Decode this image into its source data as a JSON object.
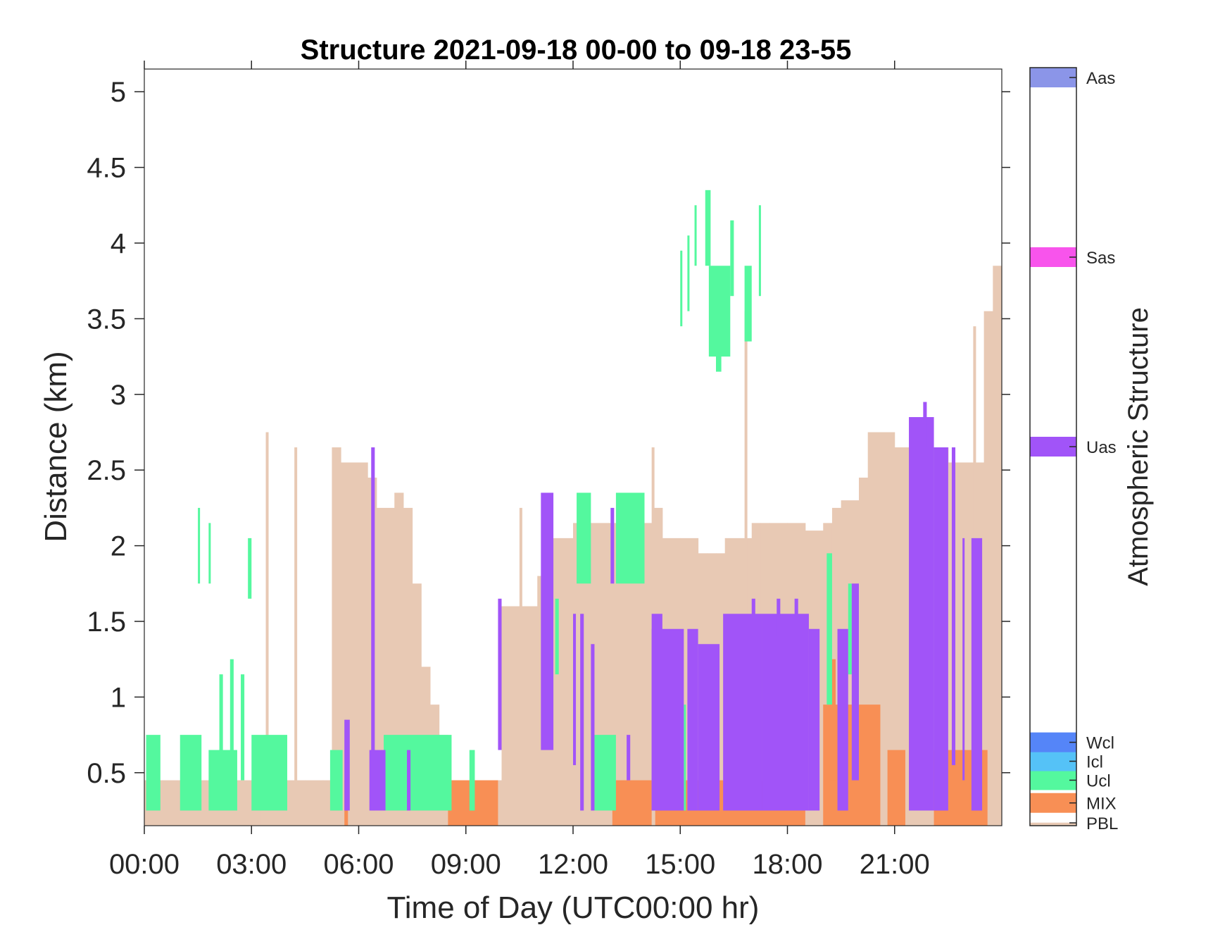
{
  "chart_data": {
    "type": "heatmap",
    "title": "Structure 2021-09-18 00-00 to 09-18 23-55",
    "xlabel": "Time of Day (UTC00:00 hr)",
    "ylabel": "Distance (km)",
    "xlim_hours": [
      0,
      24
    ],
    "ylim_km": [
      0.15,
      5.15
    ],
    "x_ticks": [
      {
        "hour": 0,
        "label": "00:00"
      },
      {
        "hour": 3,
        "label": "03:00"
      },
      {
        "hour": 6,
        "label": "06:00"
      },
      {
        "hour": 9,
        "label": "09:00"
      },
      {
        "hour": 12,
        "label": "12:00"
      },
      {
        "hour": 15,
        "label": "15:00"
      },
      {
        "hour": 18,
        "label": "18:00"
      },
      {
        "hour": 21,
        "label": "21:00"
      }
    ],
    "y_ticks": [
      {
        "km": 0.5,
        "label": "0.5"
      },
      {
        "km": 1,
        "label": "1"
      },
      {
        "km": 1.5,
        "label": "1.5"
      },
      {
        "km": 2,
        "label": "2"
      },
      {
        "km": 2.5,
        "label": "2.5"
      },
      {
        "km": 3,
        "label": "3"
      },
      {
        "km": 3.5,
        "label": "3.5"
      },
      {
        "km": 4,
        "label": "4"
      },
      {
        "km": 4.5,
        "label": "4.5"
      },
      {
        "km": 5,
        "label": "5"
      }
    ],
    "grid": false,
    "colorbar": {
      "label": "Atmospheric Structure",
      "categories": [
        {
          "name": "PBL",
          "color": "#e8c9b4",
          "level": 0.0
        },
        {
          "name": "MIX",
          "color": "#f88f55",
          "level": 0.03
        },
        {
          "name": "Ucl",
          "color": "#54f89e",
          "level": 0.06
        },
        {
          "name": "Icl",
          "color": "#55c2f7",
          "level": 0.085
        },
        {
          "name": "Wcl",
          "color": "#5585f8",
          "level": 0.11
        },
        {
          "name": "Uas",
          "color": "#a154f8",
          "level": 0.5
        },
        {
          "name": "Sas",
          "color": "#f854ec",
          "level": 0.75
        },
        {
          "name": "Aas",
          "color": "#8b95e8",
          "level": 1.0
        }
      ]
    },
    "pbl_profile": {
      "hours": [
        0,
        0.5,
        1,
        1.5,
        2,
        2.5,
        3,
        3.25,
        3.5,
        4,
        4.25,
        4.5,
        5,
        5.25,
        5.5,
        6,
        6.25,
        6.5,
        7,
        7.25,
        7.5,
        7.75,
        8,
        8.25,
        8.5,
        9,
        9.5,
        9.75,
        10,
        10.5,
        11,
        11.25,
        11.5,
        12,
        12.5,
        13,
        13.5,
        14,
        14.25,
        14.5,
        15,
        15.5,
        15.75,
        16,
        16.25,
        16.5,
        16.75,
        17,
        17.25,
        17.5,
        18,
        18.5,
        19,
        19.25,
        19.5,
        20,
        20.25,
        20.5,
        21,
        21.5,
        22,
        22.5,
        23,
        23.5,
        23.75
      ],
      "top_km": [
        0.45,
        0.45,
        0.45,
        0.45,
        0.45,
        0.45,
        0.45,
        0.45,
        0.45,
        0.45,
        0.45,
        0.45,
        0.45,
        2.65,
        2.55,
        2.55,
        2.45,
        2.25,
        2.35,
        2.25,
        1.75,
        1.2,
        0.95,
        0.75,
        0.45,
        0.45,
        0.45,
        0.45,
        1.6,
        1.6,
        1.8,
        2.05,
        2.05,
        2.15,
        2.15,
        2.15,
        2.1,
        2.15,
        2.25,
        2.05,
        2.05,
        1.95,
        1.95,
        1.95,
        2.05,
        2.05,
        2.05,
        2.15,
        2.15,
        2.15,
        2.15,
        2.1,
        2.15,
        2.25,
        2.3,
        2.45,
        2.75,
        2.75,
        2.65,
        2.65,
        2.65,
        2.55,
        2.55,
        3.55,
        3.85
      ],
      "spikes": [
        {
          "hour": 3.4,
          "top_km": 2.75
        },
        {
          "hour": 4.2,
          "top_km": 2.65
        },
        {
          "hour": 10.5,
          "top_km": 2.25
        },
        {
          "hour": 14.2,
          "top_km": 2.65
        },
        {
          "hour": 16.8,
          "top_km": 3.55
        },
        {
          "hour": 23.2,
          "top_km": 3.45
        }
      ]
    },
    "segments": [
      {
        "class": "MIX",
        "h0": 5.25,
        "h1": 5.45,
        "y0": 0.25,
        "y1": 0.45
      },
      {
        "class": "MIX",
        "h0": 5.6,
        "h1": 5.7,
        "y0": 0.15,
        "y1": 0.45
      },
      {
        "class": "MIX",
        "h0": 8.5,
        "h1": 9.9,
        "y0": 0.15,
        "y1": 0.45
      },
      {
        "class": "MIX",
        "h0": 13.1,
        "h1": 14.2,
        "y0": 0.15,
        "y1": 0.45
      },
      {
        "class": "MIX",
        "h0": 14.3,
        "h1": 18.5,
        "y0": 0.15,
        "y1": 0.45
      },
      {
        "class": "MIX",
        "h0": 15.9,
        "h1": 16.0,
        "y0": 0.25,
        "y1": 0.85
      },
      {
        "class": "MIX",
        "h0": 19.0,
        "h1": 20.6,
        "y0": 0.15,
        "y1": 0.95
      },
      {
        "class": "MIX",
        "h0": 19.2,
        "h1": 19.35,
        "y0": 0.45,
        "y1": 1.25
      },
      {
        "class": "MIX",
        "h0": 20.8,
        "h1": 21.3,
        "y0": 0.15,
        "y1": 0.65
      },
      {
        "class": "MIX",
        "h0": 22.1,
        "h1": 23.6,
        "y0": 0.15,
        "y1": 0.65
      },
      {
        "class": "Ucl",
        "h0": 0.05,
        "h1": 0.45,
        "y0": 0.25,
        "y1": 0.75
      },
      {
        "class": "Ucl",
        "h0": 1.0,
        "h1": 1.6,
        "y0": 0.25,
        "y1": 0.75
      },
      {
        "class": "Ucl",
        "h0": 1.5,
        "h1": 1.55,
        "y0": 1.75,
        "y1": 2.25
      },
      {
        "class": "Ucl",
        "h0": 1.8,
        "h1": 1.85,
        "y0": 1.75,
        "y1": 2.15
      },
      {
        "class": "Ucl",
        "h0": 1.8,
        "h1": 2.6,
        "y0": 0.25,
        "y1": 0.65
      },
      {
        "class": "Ucl",
        "h0": 2.1,
        "h1": 2.2,
        "y0": 0.45,
        "y1": 1.15
      },
      {
        "class": "Ucl",
        "h0": 2.4,
        "h1": 2.5,
        "y0": 0.35,
        "y1": 1.25
      },
      {
        "class": "Ucl",
        "h0": 2.7,
        "h1": 2.8,
        "y0": 0.45,
        "y1": 1.15
      },
      {
        "class": "Ucl",
        "h0": 2.9,
        "h1": 3.0,
        "y0": 1.65,
        "y1": 2.05
      },
      {
        "class": "Ucl",
        "h0": 3.0,
        "h1": 4.0,
        "y0": 0.25,
        "y1": 0.75
      },
      {
        "class": "Ucl",
        "h0": 5.2,
        "h1": 5.55,
        "y0": 0.25,
        "y1": 0.65
      },
      {
        "class": "Ucl",
        "h0": 6.7,
        "h1": 8.6,
        "y0": 0.25,
        "y1": 0.75
      },
      {
        "class": "Ucl",
        "h0": 9.1,
        "h1": 9.25,
        "y0": 0.25,
        "y1": 0.65
      },
      {
        "class": "Ucl",
        "h0": 11.5,
        "h1": 11.6,
        "y0": 1.15,
        "y1": 1.65
      },
      {
        "class": "Ucl",
        "h0": 12.1,
        "h1": 12.5,
        "y0": 1.75,
        "y1": 2.35
      },
      {
        "class": "Ucl",
        "h0": 12.6,
        "h1": 13.2,
        "y0": 0.25,
        "y1": 0.75
      },
      {
        "class": "Ucl",
        "h0": 13.2,
        "h1": 14.0,
        "y0": 1.75,
        "y1": 2.35
      },
      {
        "class": "Ucl",
        "h0": 15.0,
        "h1": 15.05,
        "y0": 3.45,
        "y1": 3.95
      },
      {
        "class": "Ucl",
        "h0": 15.2,
        "h1": 15.25,
        "y0": 3.55,
        "y1": 4.05
      },
      {
        "class": "Ucl",
        "h0": 15.4,
        "h1": 15.45,
        "y0": 3.85,
        "y1": 4.25
      },
      {
        "class": "Ucl",
        "h0": 15.7,
        "h1": 15.85,
        "y0": 3.85,
        "y1": 4.35
      },
      {
        "class": "Ucl",
        "h0": 15.8,
        "h1": 16.4,
        "y0": 3.25,
        "y1": 3.85
      },
      {
        "class": "Ucl",
        "h0": 16.0,
        "h1": 16.15,
        "y0": 3.15,
        "y1": 3.55
      },
      {
        "class": "Ucl",
        "h0": 16.4,
        "h1": 16.5,
        "y0": 3.65,
        "y1": 4.15
      },
      {
        "class": "Ucl",
        "h0": 16.8,
        "h1": 17.0,
        "y0": 3.35,
        "y1": 3.85
      },
      {
        "class": "Ucl",
        "h0": 17.2,
        "h1": 17.25,
        "y0": 3.65,
        "y1": 4.25
      },
      {
        "class": "Ucl",
        "h0": 19.1,
        "h1": 19.25,
        "y0": 0.95,
        "y1": 1.95
      },
      {
        "class": "Ucl",
        "h0": 19.7,
        "h1": 19.8,
        "y0": 1.15,
        "y1": 1.75
      },
      {
        "class": "Ucl",
        "h0": 15.1,
        "h1": 15.15,
        "y0": 0.25,
        "y1": 0.95
      },
      {
        "class": "Uas",
        "h0": 5.6,
        "h1": 5.75,
        "y0": 0.25,
        "y1": 0.85
      },
      {
        "class": "Uas",
        "h0": 6.3,
        "h1": 6.75,
        "y0": 0.25,
        "y1": 0.65
      },
      {
        "class": "Uas",
        "h0": 6.35,
        "h1": 6.45,
        "y0": 0.25,
        "y1": 2.65
      },
      {
        "class": "Uas",
        "h0": 7.35,
        "h1": 7.45,
        "y0": 0.25,
        "y1": 0.65
      },
      {
        "class": "Uas",
        "h0": 9.9,
        "h1": 10.0,
        "y0": 0.65,
        "y1": 1.65
      },
      {
        "class": "Uas",
        "h0": 11.1,
        "h1": 11.45,
        "y0": 0.65,
        "y1": 2.35
      },
      {
        "class": "Uas",
        "h0": 12.0,
        "h1": 12.08,
        "y0": 0.55,
        "y1": 1.55
      },
      {
        "class": "Uas",
        "h0": 12.2,
        "h1": 12.3,
        "y0": 0.25,
        "y1": 1.55
      },
      {
        "class": "Uas",
        "h0": 12.5,
        "h1": 12.6,
        "y0": 0.25,
        "y1": 1.35
      },
      {
        "class": "Uas",
        "h0": 13.05,
        "h1": 13.15,
        "y0": 1.75,
        "y1": 2.25
      },
      {
        "class": "Uas",
        "h0": 13.5,
        "h1": 13.6,
        "y0": 0.45,
        "y1": 0.75
      },
      {
        "class": "Uas",
        "h0": 14.2,
        "h1": 15.1,
        "y0": 0.25,
        "y1": 1.45
      },
      {
        "class": "Uas",
        "h0": 14.2,
        "h1": 14.5,
        "y0": 0.25,
        "y1": 1.55
      },
      {
        "class": "Uas",
        "h0": 15.2,
        "h1": 15.5,
        "y0": 0.25,
        "y1": 1.45
      },
      {
        "class": "Uas",
        "h0": 15.5,
        "h1": 16.1,
        "y0": 0.25,
        "y1": 1.35
      },
      {
        "class": "Uas",
        "h0": 16.2,
        "h1": 17.3,
        "y0": 0.25,
        "y1": 1.55
      },
      {
        "class": "Uas",
        "h0": 17.0,
        "h1": 17.1,
        "y0": 1.3,
        "y1": 1.65
      },
      {
        "class": "Uas",
        "h0": 17.3,
        "h1": 18.6,
        "y0": 0.25,
        "y1": 1.55
      },
      {
        "class": "Uas",
        "h0": 17.7,
        "h1": 17.8,
        "y0": 1.4,
        "y1": 1.65
      },
      {
        "class": "Uas",
        "h0": 18.2,
        "h1": 18.3,
        "y0": 1.4,
        "y1": 1.65
      },
      {
        "class": "Uas",
        "h0": 18.6,
        "h1": 18.9,
        "y0": 0.25,
        "y1": 1.45
      },
      {
        "class": "Uas",
        "h0": 19.4,
        "h1": 19.7,
        "y0": 0.25,
        "y1": 1.45
      },
      {
        "class": "Uas",
        "h0": 19.8,
        "h1": 20.0,
        "y0": 0.45,
        "y1": 1.75
      },
      {
        "class": "Uas",
        "h0": 21.4,
        "h1": 22.1,
        "y0": 0.25,
        "y1": 2.85
      },
      {
        "class": "Uas",
        "h0": 21.8,
        "h1": 21.9,
        "y0": 2.65,
        "y1": 2.95
      },
      {
        "class": "Uas",
        "h0": 22.1,
        "h1": 22.5,
        "y0": 0.25,
        "y1": 2.65
      },
      {
        "class": "Uas",
        "h0": 22.6,
        "h1": 22.7,
        "y0": 0.55,
        "y1": 2.65
      },
      {
        "class": "Uas",
        "h0": 22.9,
        "h1": 22.95,
        "y0": 0.45,
        "y1": 2.05
      },
      {
        "class": "Uas",
        "h0": 23.15,
        "h1": 23.45,
        "y0": 0.25,
        "y1": 2.05
      }
    ]
  }
}
